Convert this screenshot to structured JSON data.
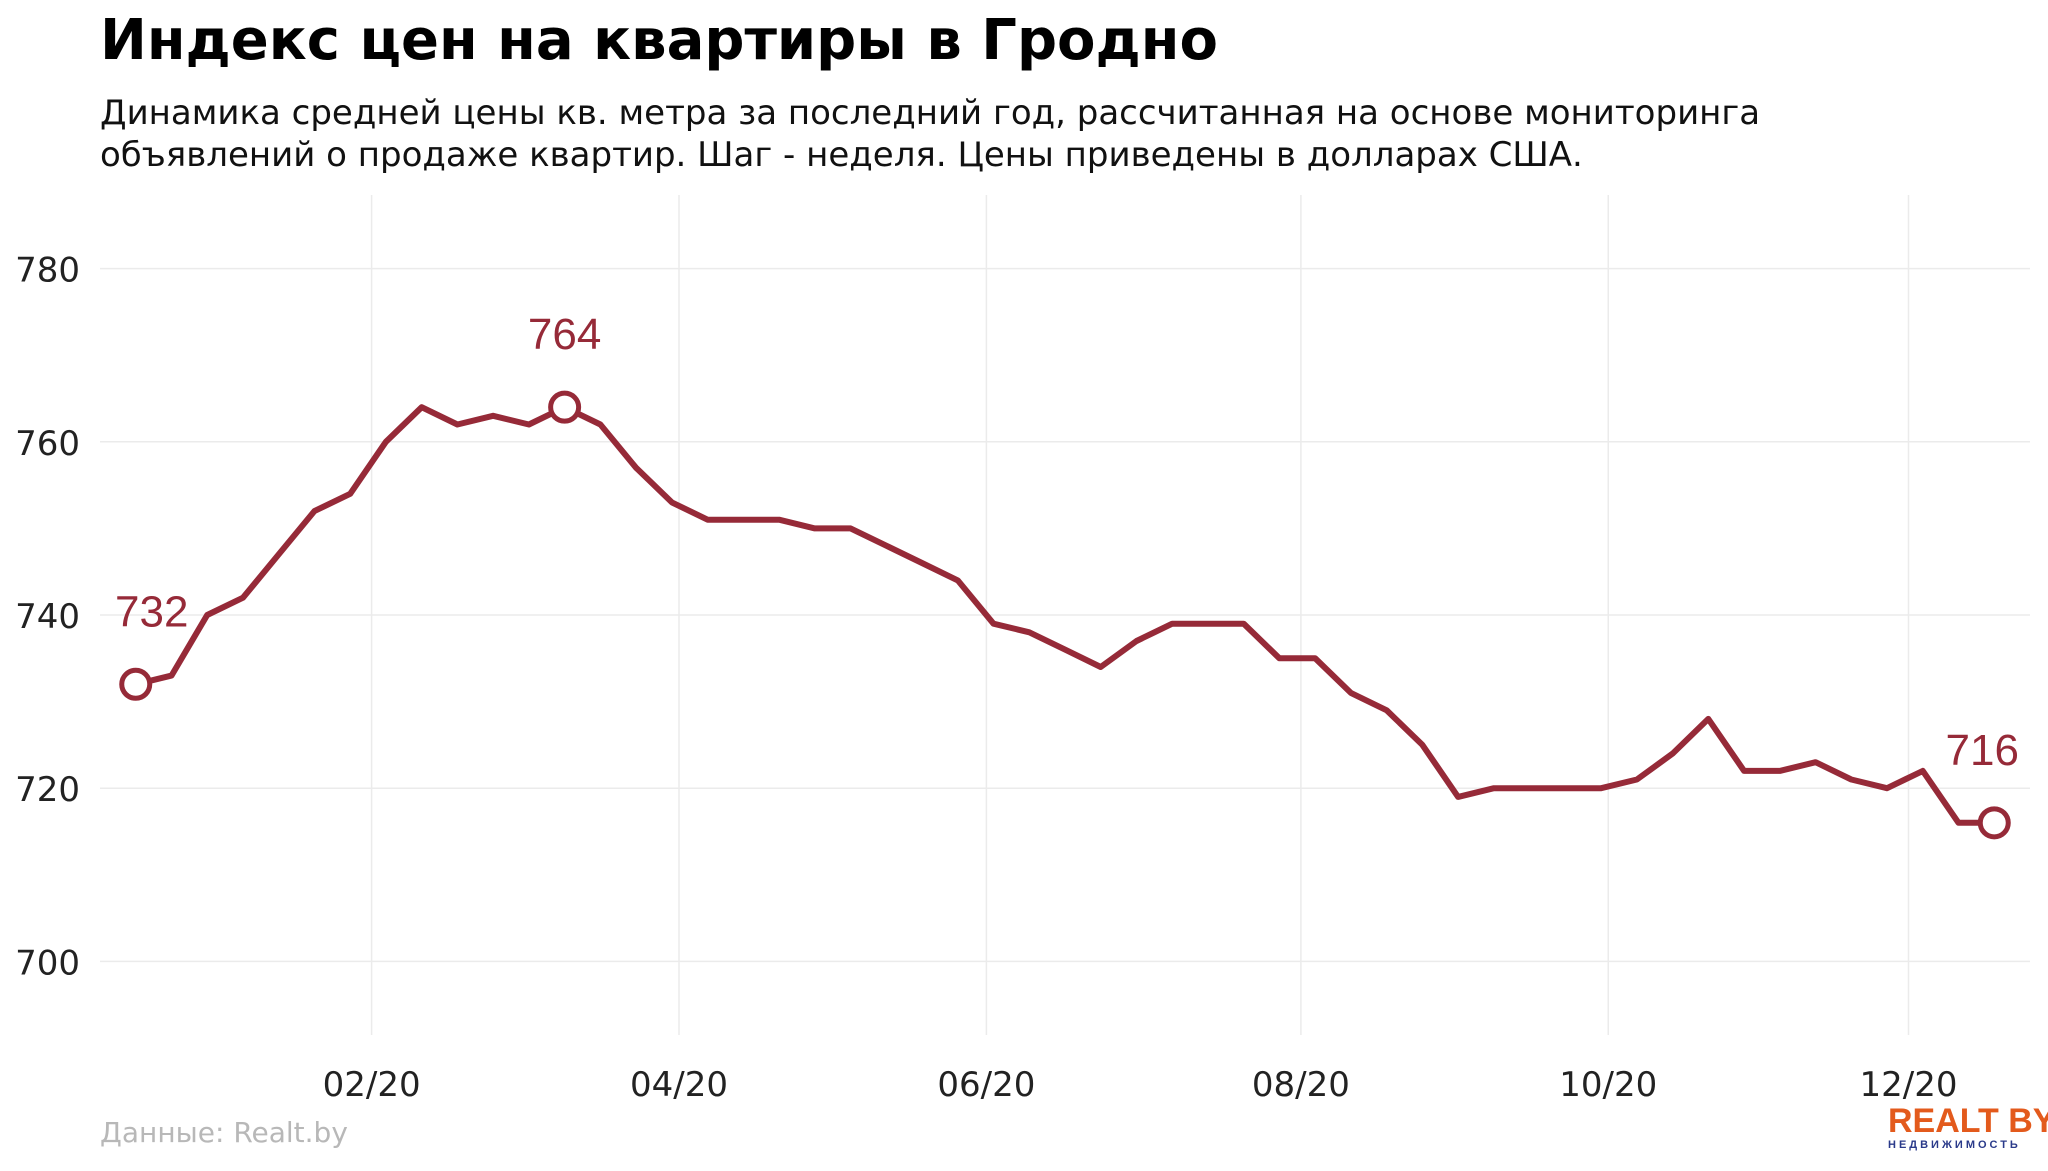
{
  "title": "Индекс цен на квартиры в Гродно",
  "subtitle_lines": [
    "Динамика средней цены кв. метра за последний год, рассчитанная на основе мониторинга",
    "объявлений о продаже квартир. Шаг - неделя. Цены приведены в долларах США."
  ],
  "source": "Данные: Realt.by",
  "logo": {
    "main": "REALT BY",
    "sub": "НЕДВИЖИМОСТЬ"
  },
  "colors": {
    "line": "#962a38",
    "label": "#962a38",
    "grid": "#ebebeb",
    "axis_text": "#222222",
    "logo": "#e35a1c"
  },
  "chart_data": {
    "type": "line",
    "title": "Индекс цен на квартиры в Гродно",
    "xlabel": "",
    "ylabel": "",
    "ylim": [
      691.5,
      788.5
    ],
    "yticks": [
      700,
      720,
      740,
      760,
      780
    ],
    "x_tick_labels": [
      "02/20",
      "04/20",
      "06/20",
      "08/20",
      "10/20",
      "12/20"
    ],
    "x_tick_weeks": [
      6.6,
      15.2,
      23.8,
      32.6,
      41.2,
      49.6
    ],
    "grid": true,
    "legend": "none",
    "series": [
      {
        "weeks": [
          0,
          1,
          2,
          3,
          4,
          5,
          6,
          7,
          8,
          9,
          10,
          11,
          12,
          13,
          14,
          15,
          16,
          17,
          18,
          19,
          20,
          21,
          22,
          23,
          24,
          25,
          26,
          27,
          28,
          29,
          30,
          31,
          32,
          33,
          34,
          35,
          36,
          37,
          38,
          39,
          40,
          41,
          42,
          43,
          44,
          45,
          46,
          47,
          48,
          49,
          50,
          51,
          52
        ],
        "values": [
          732,
          733,
          740,
          742,
          747,
          752,
          754,
          760,
          764,
          762,
          763,
          762,
          764,
          762,
          757,
          753,
          751,
          751,
          751,
          750,
          750,
          748,
          746,
          744,
          739,
          738,
          736,
          734,
          737,
          739,
          739,
          739,
          735,
          735,
          731,
          729,
          725,
          719,
          720,
          720,
          720,
          720,
          721,
          724,
          728,
          722,
          722,
          723,
          721,
          720,
          722,
          716,
          716
        ]
      }
    ],
    "annotations": [
      {
        "week": 0,
        "value": 732,
        "text": "732"
      },
      {
        "week": 12,
        "value": 764,
        "text": "764"
      },
      {
        "week": 52,
        "value": 716,
        "text": "716"
      }
    ]
  }
}
